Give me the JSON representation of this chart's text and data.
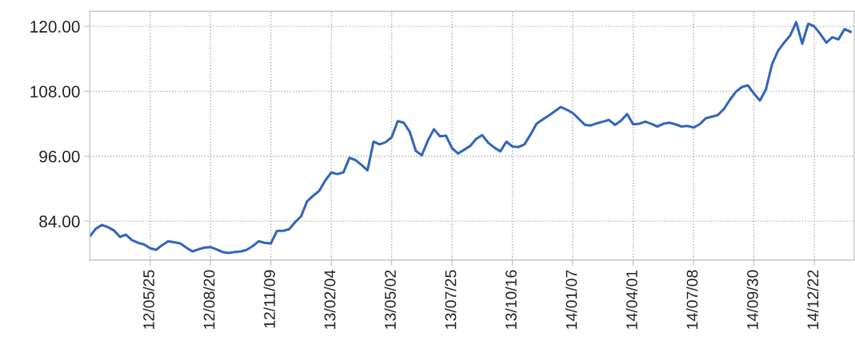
{
  "chart_data": {
    "type": "line",
    "categories": [
      null,
      null,
      null,
      null,
      null,
      null,
      null,
      null,
      null,
      null,
      "12/05/25",
      null,
      null,
      null,
      null,
      null,
      null,
      null,
      null,
      null,
      "12/08/20",
      null,
      null,
      null,
      null,
      null,
      null,
      null,
      null,
      null,
      "12/11/09",
      null,
      null,
      null,
      null,
      null,
      null,
      null,
      null,
      null,
      "13/02/04",
      null,
      null,
      null,
      null,
      null,
      null,
      null,
      null,
      null,
      "13/05/02",
      null,
      null,
      null,
      null,
      null,
      null,
      null,
      null,
      null,
      "13/07/25",
      null,
      null,
      null,
      null,
      null,
      null,
      null,
      null,
      null,
      "13/10/16",
      null,
      null,
      null,
      null,
      null,
      null,
      null,
      null,
      null,
      "14/01/07",
      null,
      null,
      null,
      null,
      null,
      null,
      null,
      null,
      null,
      "14/04/01",
      null,
      null,
      null,
      null,
      null,
      null,
      null,
      null,
      null,
      "14/07/08",
      null,
      null,
      null,
      null,
      null,
      null,
      null,
      null,
      null,
      "14/09/30",
      null,
      null,
      null,
      null,
      null,
      null,
      null,
      null,
      null,
      "14/12/22",
      null,
      null,
      null,
      null,
      null,
      null
    ],
    "series": [
      {
        "color": "#3366bb",
        "values": [
          81.2,
          82.6,
          83.3,
          82.9,
          82.3,
          81.1,
          81.5,
          80.5,
          80.0,
          79.7,
          79.0,
          78.7,
          79.6,
          80.3,
          80.1,
          79.9,
          79.1,
          78.4,
          78.8,
          79.1,
          79.2,
          78.8,
          78.3,
          78.1,
          78.3,
          78.4,
          78.7,
          79.4,
          80.3,
          80.0,
          79.9,
          82.2,
          82.2,
          82.5,
          83.8,
          84.9,
          87.7,
          88.7,
          89.6,
          91.5,
          93.0,
          92.7,
          93.0,
          95.7,
          95.3,
          94.4,
          93.4,
          98.7,
          98.2,
          98.6,
          99.5,
          102.5,
          102.2,
          100.5,
          97.0,
          96.2,
          98.9,
          101.0,
          99.7,
          99.8,
          97.5,
          96.5,
          97.2,
          97.9,
          99.2,
          99.9,
          98.5,
          97.6,
          96.9,
          98.7,
          97.8,
          97.7,
          98.2,
          100.0,
          102.0,
          102.8,
          103.5,
          104.3,
          105.1,
          104.6,
          104.0,
          102.9,
          101.8,
          101.7,
          102.1,
          102.4,
          102.7,
          101.8,
          102.6,
          103.8,
          101.9,
          102.0,
          102.4,
          102.0,
          101.5,
          102.0,
          102.2,
          101.9,
          101.5,
          101.6,
          101.3,
          101.9,
          103.0,
          103.3,
          103.6,
          104.7,
          106.4,
          107.9,
          108.8,
          109.1,
          107.6,
          106.3,
          108.4,
          113.0,
          115.5,
          117.0,
          118.3,
          120.8,
          116.8,
          120.5,
          120.0,
          118.6,
          117.0,
          118.0,
          117.6,
          119.5,
          119.0
        ]
      }
    ],
    "ylim": [
      76.8,
      122.8
    ],
    "yticks": [
      {
        "value": 84,
        "label": "84.00"
      },
      {
        "value": 96,
        "label": "96.00"
      },
      {
        "value": 108,
        "label": "108.00"
      },
      {
        "value": 120,
        "label": "120.00"
      }
    ],
    "grid": true,
    "marker": "none",
    "line_style": "solid"
  }
}
